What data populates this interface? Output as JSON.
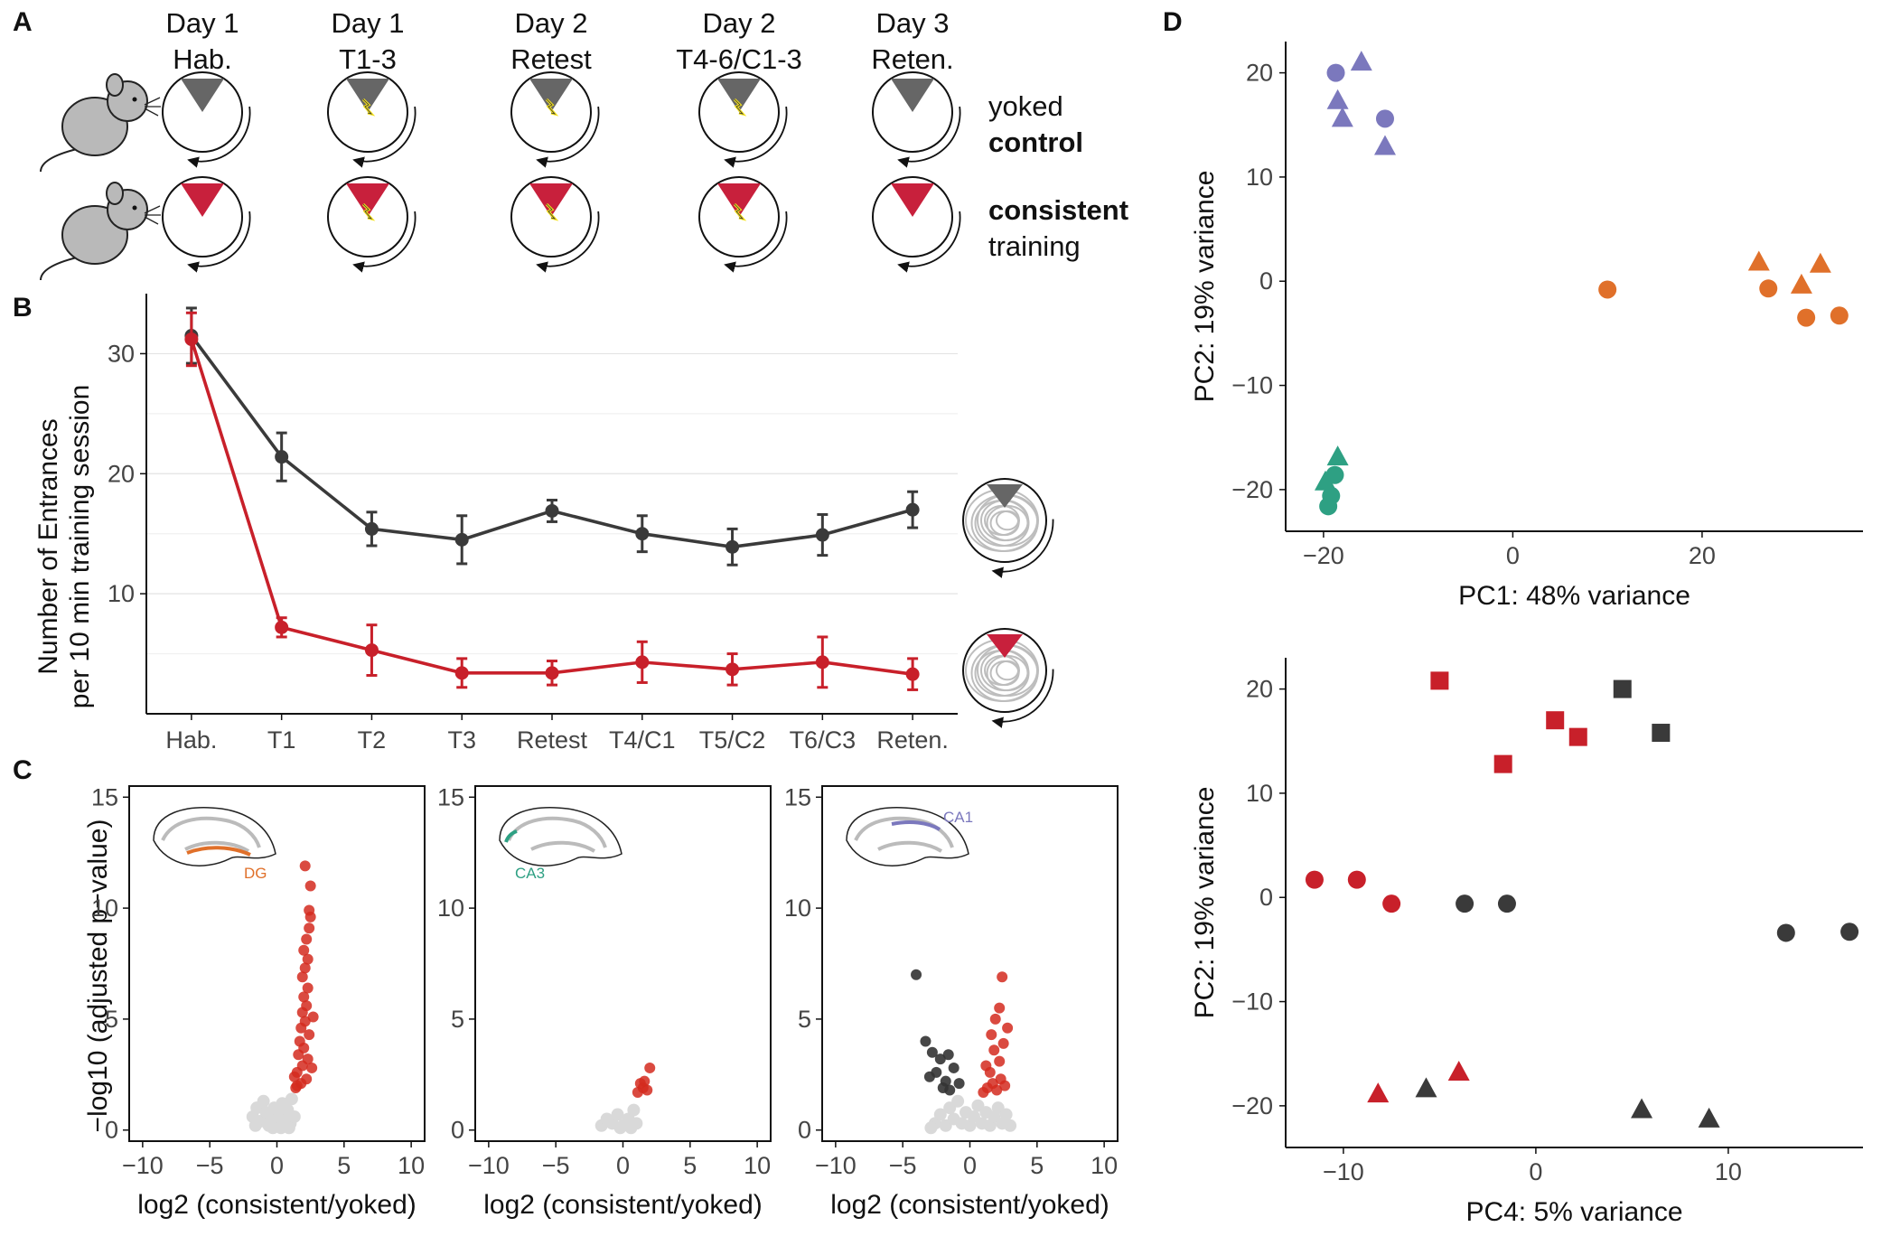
{
  "panel_labels": {
    "a": "A",
    "b": "B",
    "c": "C",
    "d": "D"
  },
  "schedule": {
    "sessions": [
      {
        "line1": "Day 1",
        "line2": "Hab.",
        "shock_control": false,
        "shock_consistent": false
      },
      {
        "line1": "Day 1",
        "line2": "T1-3",
        "shock_control": true,
        "shock_consistent": true
      },
      {
        "line1": "Day 2",
        "line2": "Retest",
        "shock_control": true,
        "shock_consistent": true
      },
      {
        "line1": "Day 2",
        "line2": "T4-6/C1-3",
        "shock_control": true,
        "shock_consistent": true
      },
      {
        "line1": "Day 3",
        "line2": "Reten.",
        "shock_control": false,
        "shock_consistent": false
      }
    ],
    "control_label_light": "yoked",
    "control_label_bold": "control",
    "consistent_label_bold": "consistent",
    "consistent_label_light": "training",
    "colors": {
      "control": "#666666",
      "consistent": "#c8203c",
      "shock": "#f5e21b"
    }
  },
  "chart_data": [
    {
      "id": "B",
      "type": "line",
      "categories": [
        "Hab.",
        "T1",
        "T2",
        "T3",
        "Retest",
        "T4/C1",
        "T5/C2",
        "T6/C3",
        "Reten."
      ],
      "ylabel_line1": "Number of Entrances",
      "ylabel_line2": "per 10 min training session",
      "ylim": [
        0,
        35
      ],
      "yticks": [
        10,
        20,
        30
      ],
      "grid": true,
      "series": [
        {
          "key": "control",
          "color": "#3a3a3a",
          "values": [
            31.5,
            21.4,
            15.4,
            14.5,
            16.9,
            15.0,
            13.9,
            14.9,
            17.0
          ],
          "errors": [
            2.3,
            2.0,
            1.4,
            2.0,
            0.9,
            1.5,
            1.5,
            1.7,
            1.5
          ]
        },
        {
          "key": "consistent",
          "color": "#c8202a",
          "values": [
            31.2,
            7.2,
            5.3,
            3.4,
            3.4,
            4.3,
            3.7,
            4.3,
            3.3
          ],
          "errors": [
            2.2,
            0.8,
            2.1,
            1.2,
            1.0,
            1.7,
            1.3,
            2.1,
            1.3
          ]
        }
      ]
    },
    {
      "id": "C1",
      "type": "scatter",
      "region": "DG",
      "region_color": "#e0702a",
      "xlabel": "log2 (consistent/yoked)",
      "ylabel": "−log10 (adjusted p−value)",
      "xlim": [
        -11,
        11
      ],
      "ylim": [
        -0.5,
        15.5
      ],
      "xticks": [
        -10,
        -5,
        0,
        5,
        10
      ],
      "yticks": [
        0,
        5,
        10,
        15
      ],
      "points_nonsig": [
        [
          -1.8,
          0.6
        ],
        [
          -1.5,
          1.0
        ],
        [
          -1.2,
          0.4
        ],
        [
          -1.0,
          1.3
        ],
        [
          -0.8,
          0.8
        ],
        [
          -0.6,
          0.2
        ],
        [
          -0.4,
          0.6
        ],
        [
          -0.2,
          1.0
        ],
        [
          0,
          0.3
        ],
        [
          0.2,
          0.7
        ],
        [
          0.4,
          1.2
        ],
        [
          0.6,
          0.4
        ],
        [
          0.8,
          0.9
        ],
        [
          1.0,
          0.3
        ],
        [
          1.1,
          1.4
        ],
        [
          0.3,
          0.1
        ],
        [
          -0.3,
          0.1
        ],
        [
          1.3,
          0.6
        ],
        [
          0.9,
          0.1
        ],
        [
          -1.6,
          0.2
        ]
      ],
      "points_up": [
        [
          1.4,
          1.9
        ],
        [
          1.8,
          2.1
        ],
        [
          2.2,
          2.3
        ],
        [
          1.5,
          2.6
        ],
        [
          1.9,
          2.9
        ],
        [
          2.3,
          3.2
        ],
        [
          1.6,
          3.4
        ],
        [
          2.0,
          3.7
        ],
        [
          1.7,
          4.0
        ],
        [
          2.4,
          4.3
        ],
        [
          1.8,
          4.6
        ],
        [
          2.1,
          4.9
        ],
        [
          1.9,
          5.3
        ],
        [
          2.2,
          5.6
        ],
        [
          2.0,
          6.0
        ],
        [
          2.3,
          6.4
        ],
        [
          1.9,
          6.9
        ],
        [
          2.1,
          7.3
        ],
        [
          2.3,
          7.7
        ],
        [
          2.0,
          8.1
        ],
        [
          2.2,
          8.6
        ],
        [
          2.4,
          9.1
        ],
        [
          2.5,
          9.6
        ],
        [
          2.4,
          9.9
        ],
        [
          2.5,
          11.0
        ],
        [
          2.1,
          11.9
        ],
        [
          1.5,
          2.0
        ],
        [
          2.6,
          2.8
        ],
        [
          1.3,
          2.4
        ],
        [
          2.7,
          5.1
        ]
      ],
      "points_down": []
    },
    {
      "id": "C2",
      "type": "scatter",
      "region": "CA3",
      "region_color": "#2ea083",
      "xlabel": "log2 (consistent/yoked)",
      "ylabel": "",
      "xlim": [
        -11,
        11
      ],
      "ylim": [
        -0.5,
        15.5
      ],
      "xticks": [
        -10,
        -5,
        0,
        5,
        10
      ],
      "yticks": [
        0,
        5,
        10,
        15
      ],
      "points_nonsig": [
        [
          -1.6,
          0.2
        ],
        [
          -1.2,
          0.5
        ],
        [
          -0.8,
          0.3
        ],
        [
          -0.4,
          0.7
        ],
        [
          0,
          0.2
        ],
        [
          0.4,
          0.5
        ],
        [
          0.8,
          0.9
        ],
        [
          1.0,
          0.3
        ],
        [
          -0.2,
          0.1
        ],
        [
          0.6,
          0.1
        ]
      ],
      "points_up": [
        [
          1.1,
          1.7
        ],
        [
          1.5,
          1.9
        ],
        [
          1.8,
          1.8
        ],
        [
          1.3,
          2.1
        ],
        [
          1.6,
          2.2
        ],
        [
          2.0,
          2.8
        ]
      ],
      "points_down": []
    },
    {
      "id": "C3",
      "type": "scatter",
      "region": "CA1",
      "region_color": "#7b78bd",
      "xlabel": "log2 (consistent/yoked)",
      "ylabel": "",
      "xlim": [
        -11,
        11
      ],
      "ylim": [
        -0.5,
        15.5
      ],
      "xticks": [
        -10,
        -5,
        0,
        5,
        10
      ],
      "yticks": [
        0,
        5,
        10,
        15
      ],
      "points_nonsig": [
        [
          -2.6,
          0.3
        ],
        [
          -2.2,
          0.7
        ],
        [
          -1.8,
          0.2
        ],
        [
          -1.5,
          1.0
        ],
        [
          -1.2,
          0.5
        ],
        [
          -0.9,
          1.3
        ],
        [
          -0.6,
          0.3
        ],
        [
          -0.3,
          0.8
        ],
        [
          0,
          0.2
        ],
        [
          0.3,
          0.6
        ],
        [
          0.6,
          1.1
        ],
        [
          0.9,
          0.3
        ],
        [
          1.2,
          0.8
        ],
        [
          1.5,
          0.2
        ],
        [
          1.8,
          0.6
        ],
        [
          2.1,
          1.0
        ],
        [
          2.4,
          0.3
        ],
        [
          2.7,
          0.7
        ],
        [
          -2.9,
          0.1
        ],
        [
          3.0,
          0.2
        ]
      ],
      "points_up": [
        [
          1.0,
          1.7
        ],
        [
          1.3,
          1.9
        ],
        [
          1.7,
          2.1
        ],
        [
          2.0,
          1.8
        ],
        [
          2.3,
          2.3
        ],
        [
          1.5,
          2.6
        ],
        [
          2.6,
          2.0
        ],
        [
          1.2,
          2.9
        ],
        [
          2.2,
          3.1
        ],
        [
          1.8,
          3.6
        ],
        [
          2.5,
          3.9
        ],
        [
          1.6,
          4.3
        ],
        [
          2.8,
          4.6
        ],
        [
          1.9,
          5.0
        ],
        [
          2.2,
          5.5
        ],
        [
          2.4,
          6.9
        ]
      ],
      "points_down": [
        [
          -4.0,
          7.0
        ],
        [
          -3.3,
          4.0
        ],
        [
          -2.8,
          3.5
        ],
        [
          -2.2,
          3.2
        ],
        [
          -1.6,
          3.4
        ],
        [
          -2.5,
          2.6
        ],
        [
          -1.8,
          2.2
        ],
        [
          -1.2,
          2.8
        ],
        [
          -0.8,
          2.1
        ],
        [
          -1.5,
          1.8
        ],
        [
          -3.0,
          2.4
        ],
        [
          -2.0,
          1.9
        ]
      ]
    },
    {
      "id": "D1",
      "type": "scatter",
      "xlabel": "PC1: 48% variance",
      "ylabel": "PC2: 19% variance",
      "xlim": [
        -24,
        37
      ],
      "ylim": [
        -24,
        23
      ],
      "xticks": [
        -20,
        0,
        20
      ],
      "yticks": [
        -20,
        -10,
        0,
        10,
        20
      ],
      "points": [
        {
          "x": -18.7,
          "y": 20.0,
          "shape": "circle",
          "color": "#7b78bd"
        },
        {
          "x": -16.0,
          "y": 21.0,
          "shape": "triangle",
          "color": "#7b78bd"
        },
        {
          "x": -18.5,
          "y": 17.3,
          "shape": "triangle",
          "color": "#7b78bd"
        },
        {
          "x": -18.0,
          "y": 15.6,
          "shape": "triangle",
          "color": "#7b78bd"
        },
        {
          "x": -13.5,
          "y": 15.6,
          "shape": "circle",
          "color": "#7b78bd"
        },
        {
          "x": -13.5,
          "y": 12.9,
          "shape": "triangle",
          "color": "#7b78bd"
        },
        {
          "x": 10.0,
          "y": -0.8,
          "shape": "circle",
          "color": "#e0702a"
        },
        {
          "x": 26.0,
          "y": 1.8,
          "shape": "triangle",
          "color": "#e0702a"
        },
        {
          "x": 27.0,
          "y": -0.7,
          "shape": "circle",
          "color": "#e0702a"
        },
        {
          "x": 30.5,
          "y": -0.4,
          "shape": "triangle",
          "color": "#e0702a"
        },
        {
          "x": 31.0,
          "y": -3.5,
          "shape": "circle",
          "color": "#e0702a"
        },
        {
          "x": 32.5,
          "y": 1.6,
          "shape": "triangle",
          "color": "#e0702a"
        },
        {
          "x": 34.5,
          "y": -3.3,
          "shape": "circle",
          "color": "#e0702a"
        },
        {
          "x": -18.5,
          "y": -16.9,
          "shape": "triangle",
          "color": "#2ea083"
        },
        {
          "x": -19.8,
          "y": -19.3,
          "shape": "triangle",
          "color": "#2ea083"
        },
        {
          "x": -18.8,
          "y": -18.6,
          "shape": "circle",
          "color": "#2ea083"
        },
        {
          "x": -19.2,
          "y": -20.6,
          "shape": "circle",
          "color": "#2ea083"
        },
        {
          "x": -19.5,
          "y": -21.6,
          "shape": "circle",
          "color": "#2ea083"
        }
      ]
    },
    {
      "id": "D2",
      "type": "scatter",
      "xlabel": "PC4: 5% variance",
      "ylabel": "PC2: 19% variance",
      "xlim": [
        -13,
        17
      ],
      "ylim": [
        -24,
        23
      ],
      "xticks": [
        -10,
        0,
        10
      ],
      "yticks": [
        -20,
        -10,
        0,
        10,
        20
      ],
      "points": [
        {
          "x": -5.0,
          "y": 20.8,
          "shape": "square",
          "color": "#c8202a"
        },
        {
          "x": 1.0,
          "y": 17.0,
          "shape": "square",
          "color": "#c8202a"
        },
        {
          "x": 2.2,
          "y": 15.4,
          "shape": "square",
          "color": "#c8202a"
        },
        {
          "x": -1.7,
          "y": 12.8,
          "shape": "square",
          "color": "#c8202a"
        },
        {
          "x": 4.5,
          "y": 20.0,
          "shape": "square",
          "color": "#3a3a3a"
        },
        {
          "x": 6.5,
          "y": 15.8,
          "shape": "square",
          "color": "#3a3a3a"
        },
        {
          "x": -11.5,
          "y": 1.7,
          "shape": "circle",
          "color": "#c8202a"
        },
        {
          "x": -9.3,
          "y": 1.7,
          "shape": "circle",
          "color": "#c8202a"
        },
        {
          "x": -7.5,
          "y": -0.6,
          "shape": "circle",
          "color": "#c8202a"
        },
        {
          "x": -3.7,
          "y": -0.6,
          "shape": "circle",
          "color": "#3a3a3a"
        },
        {
          "x": -1.5,
          "y": -0.6,
          "shape": "circle",
          "color": "#3a3a3a"
        },
        {
          "x": 13.0,
          "y": -3.4,
          "shape": "circle",
          "color": "#3a3a3a"
        },
        {
          "x": 16.3,
          "y": -3.3,
          "shape": "circle",
          "color": "#3a3a3a"
        },
        {
          "x": -8.2,
          "y": -18.9,
          "shape": "triangle",
          "color": "#c8202a"
        },
        {
          "x": -4.0,
          "y": -16.8,
          "shape": "triangle",
          "color": "#c8202a"
        },
        {
          "x": -5.7,
          "y": -18.4,
          "shape": "triangle",
          "color": "#3a3a3a"
        },
        {
          "x": 5.5,
          "y": -20.4,
          "shape": "triangle",
          "color": "#3a3a3a"
        },
        {
          "x": 9.0,
          "y": -21.3,
          "shape": "triangle",
          "color": "#3a3a3a"
        }
      ]
    }
  ]
}
